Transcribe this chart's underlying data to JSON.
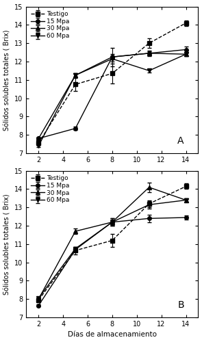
{
  "panel_A": {
    "x": [
      2,
      5,
      8,
      11,
      14
    ],
    "testigo_y": [
      7.55,
      10.75,
      11.35,
      13.0,
      14.1
    ],
    "testigo_err": [
      0.1,
      0.35,
      0.55,
      0.25,
      0.15
    ],
    "mpa15_y": [
      7.8,
      8.35,
      12.25,
      12.45,
      12.65
    ],
    "mpa15_err": [
      0.05,
      0.1,
      0.5,
      0.15,
      0.15
    ],
    "mpa30_y": [
      7.8,
      11.25,
      12.25,
      12.45,
      12.4
    ],
    "mpa30_err": [
      0.05,
      0.1,
      0.15,
      0.1,
      0.1
    ],
    "mpa60_y": [
      7.4,
      11.25,
      12.15,
      11.5,
      12.4
    ],
    "mpa60_err": [
      0.05,
      0.1,
      0.15,
      0.1,
      0.1
    ]
  },
  "panel_B": {
    "x": [
      2,
      5,
      8,
      11,
      14
    ],
    "testigo_y": [
      7.95,
      10.65,
      11.2,
      13.2,
      14.15
    ],
    "testigo_err": [
      0.05,
      0.2,
      0.35,
      0.2,
      0.15
    ],
    "mpa15_y": [
      7.65,
      10.7,
      12.2,
      12.4,
      12.45
    ],
    "mpa15_err": [
      0.05,
      0.1,
      0.15,
      0.2,
      0.1
    ],
    "mpa30_y": [
      8.0,
      11.7,
      12.2,
      14.1,
      13.4
    ],
    "mpa30_err": [
      0.05,
      0.15,
      0.2,
      0.25,
      0.1
    ],
    "mpa60_y": [
      8.05,
      10.75,
      12.2,
      13.15,
      13.4
    ],
    "mpa60_err": [
      0.05,
      0.1,
      0.2,
      0.2,
      0.1
    ]
  },
  "ylabel": "Sólidos solubles totales ( Brix)",
  "xlabel": "Días de almacenamiento",
  "ylim": [
    7,
    15
  ],
  "yticks": [
    7,
    8,
    9,
    10,
    11,
    12,
    13,
    14,
    15
  ],
  "xticks": [
    2,
    4,
    6,
    8,
    10,
    12,
    14
  ],
  "xlim": [
    1,
    15
  ],
  "legend_labels": [
    "Testigo",
    "15 Mpa",
    "30 Mpa",
    "60 Mpa"
  ],
  "label_A": "A",
  "label_B": "B",
  "line_color": "black",
  "marker_size": 4,
  "linewidth": 1.0,
  "capsize": 2,
  "elinewidth": 0.8,
  "ylabel_fontsize": 7.0,
  "xlabel_fontsize": 7.5,
  "tick_labelsize": 7.0,
  "legend_fontsize": 6.5,
  "panel_label_fontsize": 10
}
